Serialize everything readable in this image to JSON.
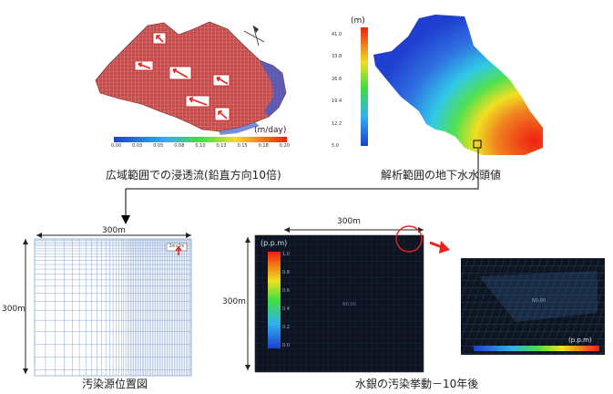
{
  "panels": {
    "wide_flow": {
      "caption": "広域範囲での浸透流(鉛直方向10倍)",
      "colorbar_unit": "(m/day)",
      "colorbar_ticks": [
        "0.00",
        "0.03",
        "0.05",
        "0.08",
        "0.10",
        "0.13",
        "0.15",
        "0.18",
        "0.20"
      ]
    },
    "head": {
      "caption": "解析範囲の地下水水頭値",
      "colorbar_unit": "(m)",
      "colorbar_ticks": [
        "41.0",
        "33.8",
        "26.6",
        "19.4",
        "12.2",
        "5.0"
      ]
    },
    "source": {
      "caption": "汚染源位置図",
      "dim_top": "300m",
      "dim_left": "300m",
      "cell_label": "2m×2m"
    },
    "mercury": {
      "caption": "水銀の汚染挙動－10年後",
      "dim_top": "300m",
      "dim_left": "300m",
      "unit": "(p.p.m)",
      "legend_ticks": [
        "1.0",
        "0.8",
        "0.6",
        "0.4",
        "0.2",
        "0.0"
      ],
      "center_label": "N0.00"
    },
    "zoom": {
      "unit": "(p.p.m)",
      "label": "N0.00"
    }
  },
  "colors": {
    "arrow_red": "#e8241c",
    "mesh_blue": "#3b5fd0",
    "dark_panel": "#0d1420",
    "grid_line": "#8aa7d8"
  }
}
